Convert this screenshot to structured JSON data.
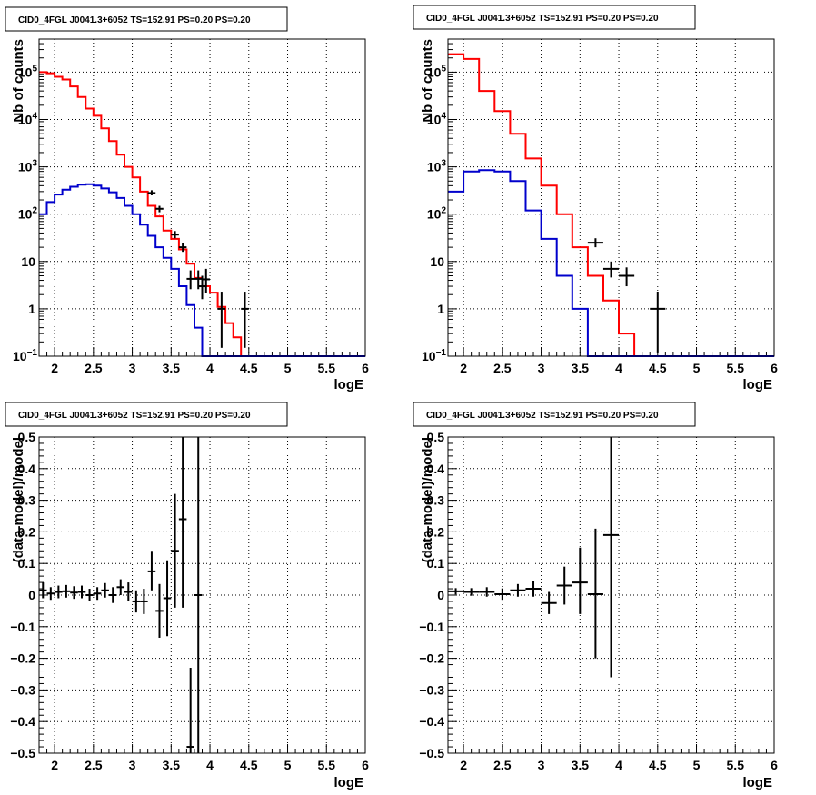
{
  "chart_data": [
    {
      "type": "histogram",
      "title": "CID0_4FGL J0041.3+6052 TS=152.91 PS=0.20 PS=0.20",
      "xlabel": "logE",
      "ylabel": "Nb of counts",
      "log_y": true,
      "grid": true,
      "xlim": [
        1.8,
        6.0
      ],
      "ylim": [
        0.1,
        500000
      ],
      "x_ticks": [
        "2",
        "2.5",
        "3",
        "3.5",
        "4",
        "4.5",
        "5",
        "5.5",
        "6"
      ],
      "y_ticks": [
        {
          "v": 0.1,
          "base": "10",
          "exp": "−1"
        },
        {
          "v": 1,
          "base": "1",
          "exp": ""
        },
        {
          "v": 10,
          "base": "10",
          "exp": ""
        },
        {
          "v": 100,
          "base": "10",
          "exp": "2"
        },
        {
          "v": 1000,
          "base": "10",
          "exp": "3"
        },
        {
          "v": 10000,
          "base": "10",
          "exp": "4"
        },
        {
          "v": 100000,
          "base": "10",
          "exp": "5"
        }
      ],
      "series": [
        {
          "color": "#ff0000",
          "kind": "step",
          "bin_width": 0.1,
          "x_start": 1.8,
          "values": [
            100000,
            95000,
            80000,
            70000,
            50000,
            30000,
            17000,
            12000,
            6500,
            3500,
            1800,
            1000,
            600,
            300,
            150,
            90,
            45,
            30,
            18,
            9,
            4.5,
            3,
            2.2,
            1.1,
            0.5,
            0.25,
            0.1,
            0.1,
            0.1,
            0.1,
            0.1,
            0.1,
            0.1,
            0.1,
            0.1,
            0.1,
            0.1,
            0.1,
            0.1,
            0.1,
            0.1,
            0.1
          ]
        },
        {
          "color": "#0000cc",
          "kind": "step",
          "bin_width": 0.1,
          "x_start": 1.8,
          "values": [
            100,
            180,
            260,
            330,
            380,
            420,
            430,
            400,
            350,
            290,
            220,
            150,
            100,
            60,
            35,
            20,
            12,
            7,
            3,
            1.2,
            0.4,
            0.1,
            0.1,
            0.1,
            0.1,
            0.1,
            0.1,
            0.1,
            0.1,
            0.1,
            0.1,
            0.1,
            0.1,
            0.1,
            0.1,
            0.1,
            0.1,
            0.1,
            0.1,
            0.1,
            0.1,
            0.1
          ]
        },
        {
          "color": "#000000",
          "kind": "points",
          "points": [
            {
              "x": 3.25,
              "y": 280,
              "xerr": 0.05,
              "lo": 250,
              "hi": 320
            },
            {
              "x": 3.35,
              "y": 130,
              "xerr": 0.05,
              "lo": 110,
              "hi": 150
            },
            {
              "x": 3.55,
              "y": 37,
              "xerr": 0.05,
              "lo": 31,
              "hi": 44
            },
            {
              "x": 3.65,
              "y": 20,
              "xerr": 0.05,
              "lo": 16,
              "hi": 25
            },
            {
              "x": 3.75,
              "y": 4.3,
              "xerr": 0.05,
              "lo": 2.6,
              "hi": 6.5
            },
            {
              "x": 3.85,
              "y": 4.3,
              "xerr": 0.05,
              "lo": 2.6,
              "hi": 6.5
            },
            {
              "x": 3.9,
              "y": 3,
              "xerr": 0.05,
              "lo": 1.6,
              "hi": 5
            },
            {
              "x": 3.95,
              "y": 4.2,
              "xerr": 0.05,
              "lo": 2.2,
              "hi": 7
            },
            {
              "x": 4.15,
              "y": 1,
              "xerr": 0.05,
              "lo": 0.15,
              "hi": 2.3
            },
            {
              "x": 4.45,
              "y": 1,
              "xerr": 0.05,
              "lo": 0.15,
              "hi": 2.3
            }
          ]
        }
      ]
    },
    {
      "type": "histogram",
      "title": "CID0_4FGL J0041.3+6052 TS=152.91 PS=0.20 PS=0.20",
      "xlabel": "logE",
      "ylabel": "Nb of counts",
      "log_y": true,
      "grid": true,
      "xlim": [
        1.8,
        6.0
      ],
      "ylim": [
        0.1,
        500000
      ],
      "x_ticks": [
        "2",
        "2.5",
        "3",
        "3.5",
        "4",
        "4.5",
        "5",
        "5.5",
        "6"
      ],
      "y_ticks": [
        {
          "v": 0.1,
          "base": "10",
          "exp": "−1"
        },
        {
          "v": 1,
          "base": "1",
          "exp": ""
        },
        {
          "v": 10,
          "base": "10",
          "exp": ""
        },
        {
          "v": 100,
          "base": "10",
          "exp": "2"
        },
        {
          "v": 1000,
          "base": "10",
          "exp": "3"
        },
        {
          "v": 10000,
          "base": "10",
          "exp": "4"
        },
        {
          "v": 100000,
          "base": "10",
          "exp": "5"
        }
      ],
      "series": [
        {
          "color": "#ff0000",
          "kind": "step",
          "bin_width": 0.2,
          "x_start": 1.8,
          "values": [
            240000,
            190000,
            40000,
            15000,
            5000,
            1500,
            400,
            100,
            20,
            5,
            1.5,
            0.3,
            0.1,
            0.1,
            0.1,
            0.1,
            0.1,
            0.1,
            0.1,
            0.1,
            0.1
          ]
        },
        {
          "color": "#0000cc",
          "kind": "step",
          "bin_width": 0.2,
          "x_start": 1.8,
          "values": [
            300,
            800,
            850,
            800,
            500,
            120,
            30,
            5,
            1,
            0.1,
            0.1,
            0.1,
            0.1,
            0.1,
            0.1,
            0.1,
            0.1,
            0.1,
            0.1,
            0.1,
            0.1
          ]
        },
        {
          "color": "#000000",
          "kind": "points",
          "points": [
            {
              "x": 3.7,
              "y": 25,
              "xerr": 0.1,
              "lo": 20,
              "hi": 31
            },
            {
              "x": 3.9,
              "y": 7,
              "xerr": 0.1,
              "lo": 4.6,
              "hi": 10
            },
            {
              "x": 4.1,
              "y": 5,
              "xerr": 0.1,
              "lo": 3,
              "hi": 7.5
            },
            {
              "x": 4.5,
              "y": 1,
              "xerr": 0.1,
              "lo": 0.12,
              "hi": 2.3
            }
          ]
        }
      ]
    },
    {
      "type": "scatter",
      "title": "CID0_4FGL J0041.3+6052 TS=152.91 PS=0.20 PS=0.20",
      "xlabel": "logE",
      "ylabel": "(data-model)/model",
      "log_y": false,
      "grid": true,
      "xlim": [
        1.8,
        6.0
      ],
      "ylim": [
        -0.5,
        0.5
      ],
      "x_ticks": [
        "2",
        "2.5",
        "3",
        "3.5",
        "4",
        "4.5",
        "5",
        "5.5",
        "6"
      ],
      "y_ticks": [
        {
          "v": 0.5,
          "base": "0.5",
          "exp": ""
        },
        {
          "v": 0.4,
          "base": "0.4",
          "exp": ""
        },
        {
          "v": 0.3,
          "base": "0.3",
          "exp": ""
        },
        {
          "v": 0.2,
          "base": "0.2",
          "exp": ""
        },
        {
          "v": 0.1,
          "base": "0.1",
          "exp": ""
        },
        {
          "v": 0,
          "base": "0",
          "exp": ""
        },
        {
          "v": -0.1,
          "base": "−0.1",
          "exp": ""
        },
        {
          "v": -0.2,
          "base": "−0.2",
          "exp": ""
        },
        {
          "v": -0.3,
          "base": "−0.3",
          "exp": ""
        },
        {
          "v": -0.4,
          "base": "−0.4",
          "exp": ""
        },
        {
          "v": -0.5,
          "base": "−0.5",
          "exp": ""
        }
      ],
      "series": [
        {
          "color": "#000000",
          "kind": "points",
          "points": [
            {
              "x": 1.85,
              "y": 0.015,
              "xerr": 0.05,
              "lo": -0.01,
              "hi": 0.04
            },
            {
              "x": 1.95,
              "y": 0.005,
              "xerr": 0.05,
              "lo": -0.015,
              "hi": 0.025
            },
            {
              "x": 2.05,
              "y": 0.01,
              "xerr": 0.05,
              "lo": -0.01,
              "hi": 0.03
            },
            {
              "x": 2.15,
              "y": 0.012,
              "xerr": 0.05,
              "lo": -0.008,
              "hi": 0.032
            },
            {
              "x": 2.25,
              "y": 0.008,
              "xerr": 0.05,
              "lo": -0.012,
              "hi": 0.028
            },
            {
              "x": 2.35,
              "y": 0.01,
              "xerr": 0.05,
              "lo": -0.01,
              "hi": 0.03
            },
            {
              "x": 2.45,
              "y": 0.0,
              "xerr": 0.05,
              "lo": -0.02,
              "hi": 0.02
            },
            {
              "x": 2.55,
              "y": 0.005,
              "xerr": 0.05,
              "lo": -0.015,
              "hi": 0.025
            },
            {
              "x": 2.65,
              "y": 0.015,
              "xerr": 0.05,
              "lo": -0.008,
              "hi": 0.038
            },
            {
              "x": 2.75,
              "y": 0.0,
              "xerr": 0.05,
              "lo": -0.025,
              "hi": 0.025
            },
            {
              "x": 2.85,
              "y": 0.025,
              "xerr": 0.05,
              "lo": 0.0,
              "hi": 0.05
            },
            {
              "x": 2.95,
              "y": 0.01,
              "xerr": 0.05,
              "lo": -0.02,
              "hi": 0.04
            },
            {
              "x": 3.05,
              "y": -0.02,
              "xerr": 0.05,
              "lo": -0.055,
              "hi": 0.015
            },
            {
              "x": 3.15,
              "y": -0.02,
              "xerr": 0.05,
              "lo": -0.06,
              "hi": 0.02
            },
            {
              "x": 3.25,
              "y": 0.075,
              "xerr": 0.05,
              "lo": 0.015,
              "hi": 0.14
            },
            {
              "x": 3.35,
              "y": -0.05,
              "xerr": 0.05,
              "lo": -0.135,
              "hi": 0.035
            },
            {
              "x": 3.45,
              "y": -0.01,
              "xerr": 0.05,
              "lo": -0.13,
              "hi": 0.11
            },
            {
              "x": 3.55,
              "y": 0.14,
              "xerr": 0.05,
              "lo": -0.04,
              "hi": 0.32
            },
            {
              "x": 3.65,
              "y": 0.24,
              "xerr": 0.05,
              "lo": -0.04,
              "hi": 0.5
            },
            {
              "x": 3.75,
              "y": -0.48,
              "xerr": 0.05,
              "lo": -0.5,
              "hi": -0.23
            },
            {
              "x": 3.85,
              "y": 0.0,
              "xerr": 0.05,
              "lo": -0.5,
              "hi": 0.5
            }
          ]
        }
      ]
    },
    {
      "type": "scatter",
      "title": "CID0_4FGL J0041.3+6052 TS=152.91 PS=0.20 PS=0.20",
      "xlabel": "logE",
      "ylabel": "(data-model)/model",
      "log_y": false,
      "grid": true,
      "xlim": [
        1.8,
        6.0
      ],
      "ylim": [
        -0.5,
        0.5
      ],
      "x_ticks": [
        "2",
        "2.5",
        "3",
        "3.5",
        "4",
        "4.5",
        "5",
        "5.5",
        "6"
      ],
      "y_ticks": [
        {
          "v": 0.5,
          "base": "0.5",
          "exp": ""
        },
        {
          "v": 0.4,
          "base": "0.4",
          "exp": ""
        },
        {
          "v": 0.3,
          "base": "0.3",
          "exp": ""
        },
        {
          "v": 0.2,
          "base": "0.2",
          "exp": ""
        },
        {
          "v": 0.1,
          "base": "0.1",
          "exp": ""
        },
        {
          "v": 0,
          "base": "0",
          "exp": ""
        },
        {
          "v": -0.1,
          "base": "−0.1",
          "exp": ""
        },
        {
          "v": -0.2,
          "base": "−0.2",
          "exp": ""
        },
        {
          "v": -0.3,
          "base": "−0.3",
          "exp": ""
        },
        {
          "v": -0.4,
          "base": "−0.4",
          "exp": ""
        },
        {
          "v": -0.5,
          "base": "−0.5",
          "exp": ""
        }
      ],
      "series": [
        {
          "color": "#000000",
          "kind": "points",
          "points": [
            {
              "x": 1.9,
              "y": 0.012,
              "xerr": 0.1,
              "lo": 0.002,
              "hi": 0.022
            },
            {
              "x": 2.1,
              "y": 0.01,
              "xerr": 0.1,
              "lo": -0.002,
              "hi": 0.022
            },
            {
              "x": 2.3,
              "y": 0.01,
              "xerr": 0.1,
              "lo": -0.005,
              "hi": 0.025
            },
            {
              "x": 2.5,
              "y": 0.003,
              "xerr": 0.1,
              "lo": -0.015,
              "hi": 0.021
            },
            {
              "x": 2.7,
              "y": 0.015,
              "xerr": 0.1,
              "lo": -0.005,
              "hi": 0.035
            },
            {
              "x": 2.9,
              "y": 0.02,
              "xerr": 0.1,
              "lo": -0.005,
              "hi": 0.045
            },
            {
              "x": 3.1,
              "y": -0.025,
              "xerr": 0.1,
              "lo": -0.06,
              "hi": 0.01
            },
            {
              "x": 3.3,
              "y": 0.03,
              "xerr": 0.1,
              "lo": -0.03,
              "hi": 0.09
            },
            {
              "x": 3.5,
              "y": 0.04,
              "xerr": 0.1,
              "lo": -0.06,
              "hi": 0.15
            },
            {
              "x": 3.7,
              "y": 0.003,
              "xerr": 0.1,
              "lo": -0.2,
              "hi": 0.21
            },
            {
              "x": 3.9,
              "y": 0.19,
              "xerr": 0.1,
              "lo": -0.26,
              "hi": 0.5
            }
          ]
        }
      ]
    }
  ]
}
